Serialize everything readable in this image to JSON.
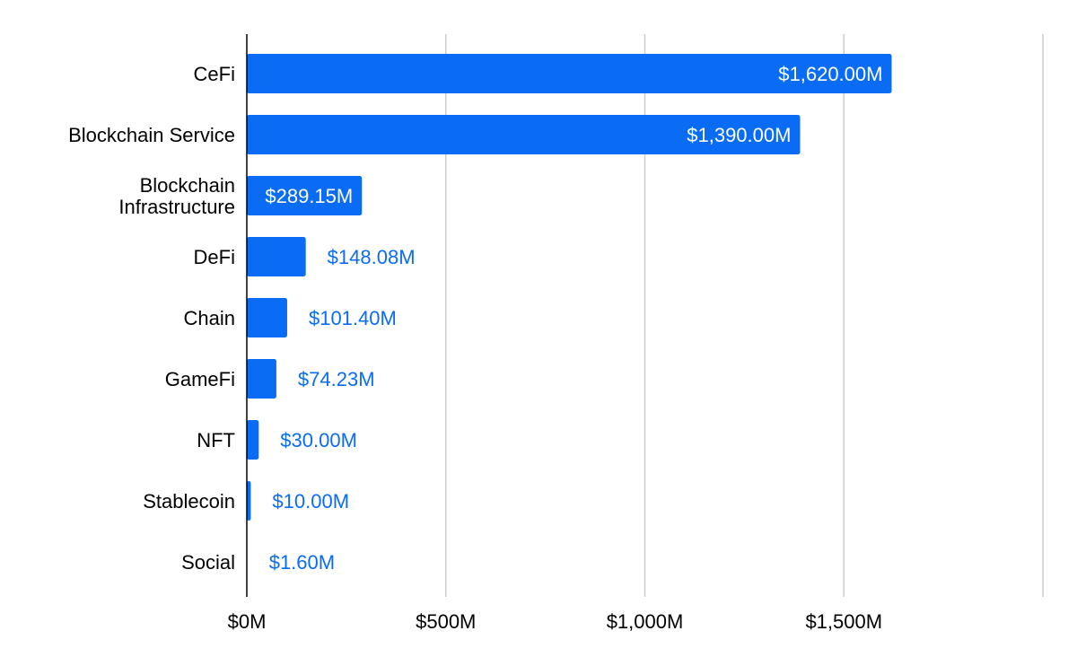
{
  "chart_data": {
    "type": "bar",
    "orientation": "horizontal",
    "title": "",
    "xlabel": "",
    "ylabel": "",
    "categories": [
      "CeFi",
      "Blockchain Service",
      "Blockchain Infrastructure",
      "DeFi",
      "Chain",
      "GameFi",
      "NFT",
      "Stablecoin",
      "Social"
    ],
    "values": [
      1620.0,
      1390.0,
      289.15,
      148.08,
      101.4,
      74.23,
      30.0,
      10.0,
      1.6
    ],
    "value_labels": [
      "$1,620.00M",
      "$1,390.00M",
      "$289.15M",
      "$148.08M",
      "$101.40M",
      "$74.23M",
      "$30.00M",
      "$10.00M",
      "$1.60M"
    ],
    "x_ticks": [
      0,
      500,
      1000,
      1500
    ],
    "x_tick_labels": [
      "$0M",
      "$500M",
      "$1,000M",
      "$1,500M"
    ],
    "xlim": [
      0,
      2000
    ],
    "grid": true,
    "legend": "none",
    "colors": {
      "bar": "#0a6cf5",
      "label_inside": "#ffffff",
      "label_outside": "#0a6cf5",
      "grid": "#cccccc",
      "axis": "#000000",
      "text": "#000000"
    }
  }
}
